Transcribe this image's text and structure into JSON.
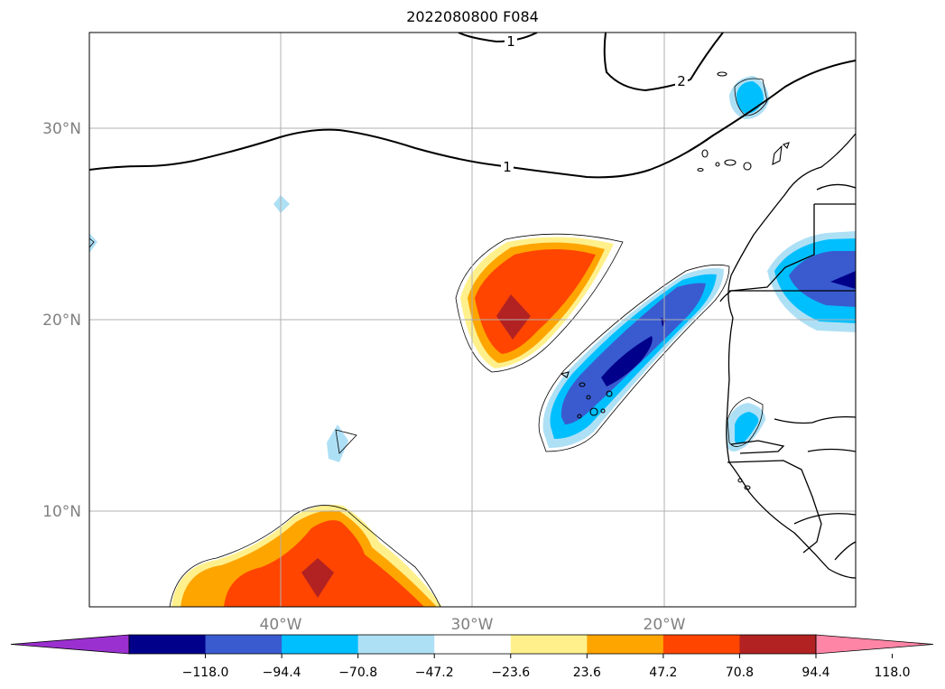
{
  "title": "2022080800 F084",
  "map": {
    "lat_labels": [
      "30°N",
      "20°N",
      "10°N"
    ],
    "lon_labels": [
      "40°W",
      "30°W",
      "20°W"
    ],
    "contour_labels": [
      "1",
      "2",
      "1"
    ],
    "grid": true
  },
  "colorbar": {
    "colors": [
      "#9b30d0",
      "#00008b",
      "#3a5bd0",
      "#00bfff",
      "#aee0f5",
      "#ffffff",
      "#fff08c",
      "#ffa500",
      "#ff4500",
      "#b22222",
      "#ff85a6"
    ],
    "ticks": [
      "−118.0",
      "−94.4",
      "−70.8",
      "−47.2",
      "−23.6",
      "23.6",
      "47.2",
      "70.8",
      "94.4",
      "118.0"
    ],
    "extend": "both"
  }
}
